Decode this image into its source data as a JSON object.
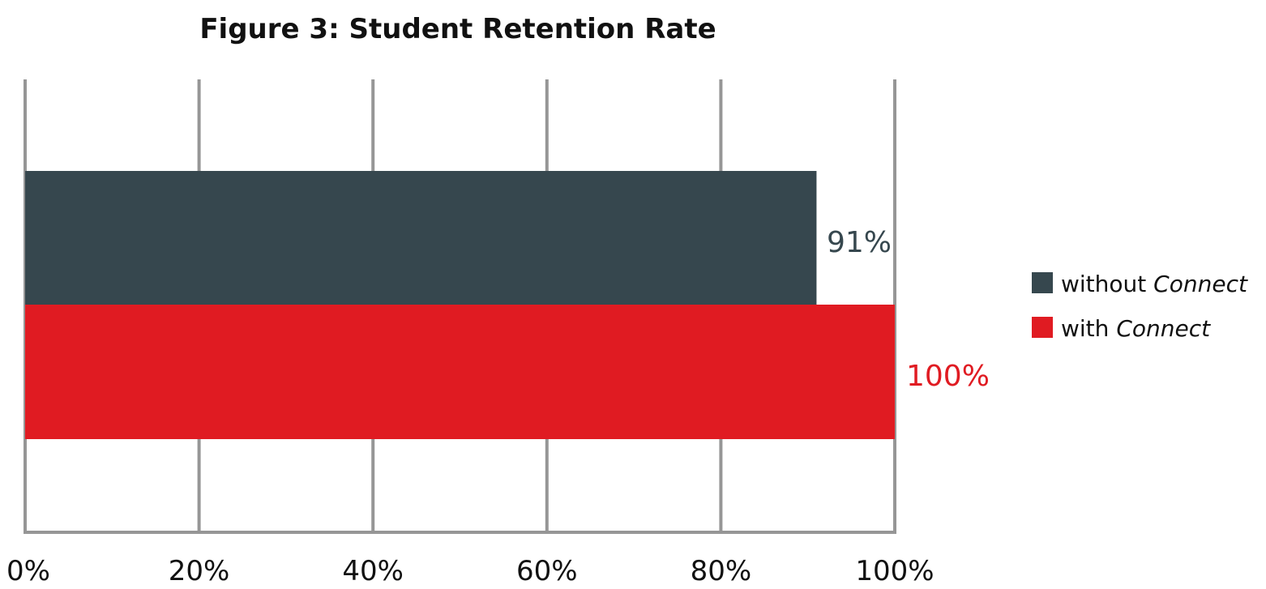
{
  "chart_data": {
    "type": "bar",
    "orientation": "horizontal",
    "title": "Figure 3: Student Retention Rate",
    "xlabel": "",
    "ylabel": "",
    "xlim": [
      0,
      100
    ],
    "x_ticks": [
      0,
      20,
      40,
      60,
      80,
      100
    ],
    "x_tick_labels": [
      "0%",
      "20%",
      "40%",
      "60%",
      "80%",
      "100%"
    ],
    "grid": "vertical",
    "legend_position": "right",
    "series": [
      {
        "name": "without Connect",
        "name_parts": [
          "without ",
          "Connect"
        ],
        "value": 91,
        "label": "91%",
        "color": "#36474e"
      },
      {
        "name": "with Connect",
        "name_parts": [
          "with ",
          "Connect"
        ],
        "value": 100,
        "label": "100%",
        "color": "#e01b22"
      }
    ]
  }
}
